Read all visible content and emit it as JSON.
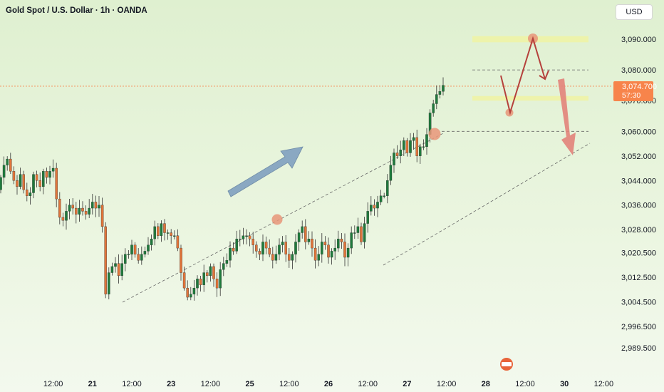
{
  "header": {
    "title": "Gold Spot / U.S. Dollar · 1h · OANDA",
    "currency": "USD"
  },
  "price_tag": {
    "price": "3,074.700",
    "countdown": "57:30",
    "color": "#f7844b"
  },
  "colors": {
    "up": "#1f7a3c",
    "down": "#e0743a",
    "wick": "#333333",
    "arrow_blue": "#8aa8c2",
    "arrow_red": "#b5413c",
    "arrow_salmon": "#e2837a",
    "zone": "#eef3a6",
    "circle": "#e89579"
  },
  "chart_data": {
    "type": "candlestick",
    "title": "",
    "xlabel": "",
    "ylabel": "",
    "ylim": [
      2984,
      3098
    ],
    "y_ticks": [
      "3,090.000",
      "3,080.000",
      "3,070.000",
      "3,060.000",
      "3,052.000",
      "3,044.000",
      "3,036.000",
      "3,028.000",
      "3,020.500",
      "3,012.500",
      "3,004.500",
      "2,996.500",
      "2,989.500"
    ],
    "y_tick_values": [
      3090,
      3080,
      3070,
      3060,
      3052,
      3044,
      3036,
      3028,
      3020.5,
      3012.5,
      3004.5,
      2996.5,
      2989.5
    ],
    "x_ticks": [
      {
        "label": "12:00",
        "bold": false,
        "index": 16
      },
      {
        "label": "21",
        "bold": true,
        "index": 28
      },
      {
        "label": "12:00",
        "bold": false,
        "index": 40
      },
      {
        "label": "23",
        "bold": true,
        "index": 52
      },
      {
        "label": "12:00",
        "bold": false,
        "index": 64
      },
      {
        "label": "25",
        "bold": true,
        "index": 76
      },
      {
        "label": "12:00",
        "bold": false,
        "index": 88
      },
      {
        "label": "26",
        "bold": true,
        "index": 100
      },
      {
        "label": "12:00",
        "bold": false,
        "index": 112
      },
      {
        "label": "27",
        "bold": true,
        "index": 124
      },
      {
        "label": "12:00",
        "bold": false,
        "index": 136
      },
      {
        "label": "28",
        "bold": true,
        "index": 148
      },
      {
        "label": "12:00",
        "bold": false,
        "index": 160
      },
      {
        "label": "30",
        "bold": true,
        "index": 172
      },
      {
        "label": "12:00",
        "bold": false,
        "index": 184
      }
    ],
    "current_price": 3074.7,
    "closes": [
      3045,
      3049,
      3051,
      3047,
      3044,
      3042,
      3046,
      3041,
      3039,
      3040,
      3046,
      3044,
      3042,
      3047,
      3045,
      3047,
      3048,
      3038,
      3032,
      3031,
      3034,
      3036,
      3035,
      3033,
      3035,
      3034,
      3033,
      3035,
      3037,
      3035,
      3036,
      3029,
      3007,
      3014,
      3016,
      3017,
      3013,
      3017,
      3020,
      3020,
      3023,
      3020,
      3018,
      3020,
      3021,
      3023,
      3025,
      3029,
      3026,
      3030,
      3027,
      3027,
      3026,
      3026,
      3022,
      3014,
      3009,
      3006,
      3007,
      3009,
      3012,
      3010,
      3014,
      3013,
      3016,
      3012,
      3009,
      3015,
      3017,
      3018,
      3022,
      3021,
      3025,
      3025,
      3026,
      3026,
      3025,
      3023,
      3021,
      3020,
      3024,
      3022,
      3020,
      3018,
      3020,
      3023,
      3024,
      3020,
      3018,
      3020,
      3024,
      3027,
      3029,
      3024,
      3025,
      3022,
      3018,
      3020,
      3024,
      3023,
      3019,
      3021,
      3022,
      3025,
      3024,
      3019,
      3022,
      3027,
      3027,
      3029,
      3024,
      3030,
      3034,
      3036,
      3035,
      3037,
      3039,
      3039,
      3044,
      3049,
      3053,
      3052,
      3054,
      3057,
      3053,
      3057,
      3058,
      3052,
      3055,
      3055,
      3059,
      3066,
      3069,
      3072,
      3073,
      3075
    ],
    "opens": [
      3041,
      3045,
      3049,
      3051,
      3047,
      3044,
      3042,
      3046,
      3041,
      3039,
      3040,
      3046,
      3044,
      3042,
      3047,
      3045,
      3047,
      3048,
      3038,
      3032,
      3031,
      3034,
      3036,
      3035,
      3033,
      3035,
      3034,
      3033,
      3035,
      3037,
      3035,
      3036,
      3029,
      3007,
      3014,
      3016,
      3017,
      3013,
      3017,
      3020,
      3020,
      3023,
      3020,
      3018,
      3020,
      3021,
      3023,
      3025,
      3029,
      3026,
      3030,
      3027,
      3027,
      3026,
      3026,
      3022,
      3014,
      3009,
      3006,
      3007,
      3009,
      3012,
      3010,
      3014,
      3013,
      3016,
      3012,
      3009,
      3015,
      3017,
      3018,
      3022,
      3021,
      3025,
      3025,
      3026,
      3026,
      3025,
      3023,
      3021,
      3020,
      3024,
      3022,
      3020,
      3018,
      3020,
      3023,
      3024,
      3020,
      3018,
      3020,
      3024,
      3027,
      3029,
      3024,
      3025,
      3022,
      3018,
      3020,
      3024,
      3023,
      3019,
      3021,
      3022,
      3025,
      3024,
      3019,
      3022,
      3027,
      3027,
      3029,
      3024,
      3030,
      3034,
      3036,
      3035,
      3037,
      3039,
      3039,
      3044,
      3049,
      3053,
      3052,
      3054,
      3057,
      3053,
      3057,
      3058,
      3052,
      3055,
      3055,
      3059,
      3066,
      3069,
      3072,
      3073
    ],
    "annotations": {
      "resistance_zone": [
        3089,
        3091
      ],
      "support_zone": [
        3070,
        3071.5
      ],
      "dashed_levels": [
        3080,
        3060
      ],
      "channel": {
        "upper_from": [
          3002,
          3012
        ],
        "upper_to": [
          3060,
          3058
        ]
      }
    }
  }
}
